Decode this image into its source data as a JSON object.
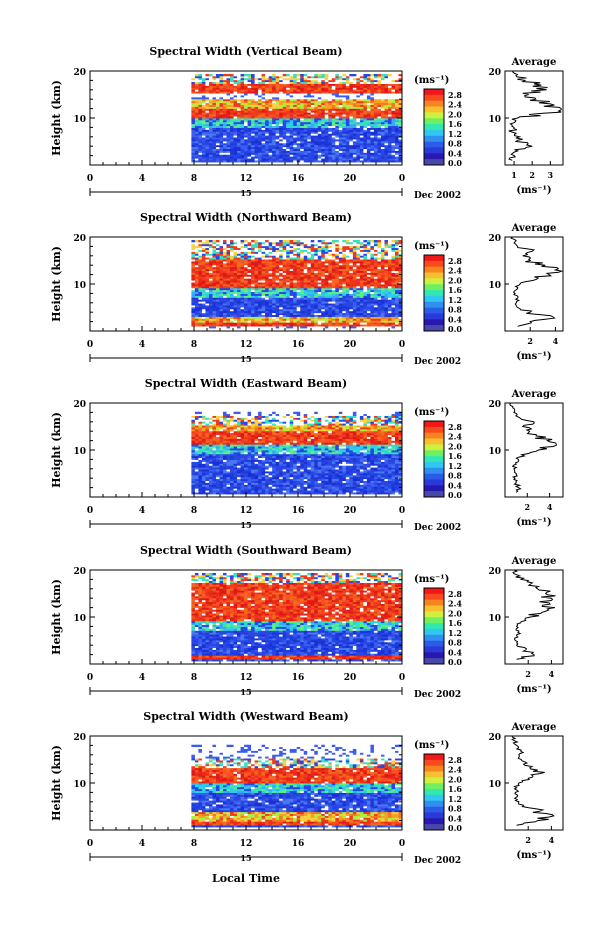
{
  "chart_data": [
    {
      "type": "heatmap",
      "title": "Spectral Width (Vertical Beam)",
      "ylabel": "Height (km)",
      "xlabel": "",
      "x_ticks": [
        "0",
        "4",
        "8",
        "12",
        "16",
        "20",
        "0"
      ],
      "y_ticks": [
        "20",
        "10"
      ],
      "xlim": [
        0,
        24
      ],
      "ylim": [
        0,
        20
      ],
      "date_label": "15",
      "month_label": "Dec 2002",
      "colorbar_unit": "(ms⁻¹)",
      "colorbar_ticks": [
        "2.8",
        "2.4",
        "2.0",
        "1.6",
        "1.2",
        "0.8",
        "0.4",
        "0.0"
      ],
      "data_start_hour": 7.8,
      "avg_title": "Average",
      "avg_ticks": [
        "1",
        "2",
        "3"
      ],
      "avg_xlim": [
        0.5,
        3.7
      ],
      "avg_unit": "(ms⁻¹)",
      "avg_profile": [
        [
          1,
          0.9
        ],
        [
          2,
          1.0
        ],
        [
          3,
          1.2
        ],
        [
          4,
          2.0
        ],
        [
          5,
          1.1
        ],
        [
          6,
          1.3
        ],
        [
          7,
          0.9
        ],
        [
          8,
          1.0
        ],
        [
          9,
          1.0
        ],
        [
          10,
          1.2
        ],
        [
          11,
          2.6
        ],
        [
          12,
          3.6
        ],
        [
          13,
          3.0
        ],
        [
          14,
          2.2
        ],
        [
          15,
          1.8
        ],
        [
          16,
          2.8
        ],
        [
          17,
          2.5
        ],
        [
          18,
          1.6
        ],
        [
          19,
          1.1
        ],
        [
          20,
          0.9
        ]
      ],
      "bands": [
        [
          0,
          3,
          "blue"
        ],
        [
          3,
          8,
          "blue"
        ],
        [
          8,
          10,
          "cyan"
        ],
        [
          10,
          12,
          "red"
        ],
        [
          12,
          14,
          "orange"
        ],
        [
          14,
          15,
          "white"
        ],
        [
          15,
          17,
          "red"
        ],
        [
          17,
          19,
          "mixed"
        ]
      ]
    },
    {
      "type": "heatmap",
      "title": "Spectral Width (Northward Beam)",
      "ylabel": "Height (km)",
      "xlabel": "",
      "x_ticks": [
        "0",
        "4",
        "8",
        "12",
        "16",
        "20",
        "0"
      ],
      "y_ticks": [
        "20",
        "10"
      ],
      "xlim": [
        0,
        24
      ],
      "ylim": [
        0,
        20
      ],
      "date_label": "15",
      "month_label": "Dec 2002",
      "colorbar_unit": "(ms⁻¹)",
      "colorbar_ticks": [
        "2.8",
        "2.4",
        "2.0",
        "1.6",
        "1.2",
        "0.8",
        "0.4",
        "0.0"
      ],
      "data_start_hour": 7.8,
      "avg_title": "Average",
      "avg_ticks": [
        "2",
        "4"
      ],
      "avg_xlim": [
        0,
        4.6
      ],
      "avg_unit": "(ms⁻¹)",
      "avg_profile": [
        [
          1,
          1.0
        ],
        [
          2,
          2.0
        ],
        [
          3,
          3.8
        ],
        [
          4,
          2.0
        ],
        [
          5,
          1.0
        ],
        [
          6,
          0.9
        ],
        [
          7,
          1.0
        ],
        [
          8,
          0.8
        ],
        [
          9,
          1.0
        ],
        [
          10,
          1.2
        ],
        [
          11,
          2.5
        ],
        [
          12,
          3.5
        ],
        [
          13,
          4.0
        ],
        [
          14,
          3.2
        ],
        [
          15,
          2.0
        ],
        [
          16,
          1.4
        ],
        [
          17,
          2.2
        ],
        [
          18,
          1.0
        ],
        [
          19,
          0.8
        ],
        [
          20,
          0.6
        ]
      ],
      "bands": [
        [
          0,
          1,
          "white"
        ],
        [
          1,
          2,
          "red"
        ],
        [
          2,
          3,
          "orange"
        ],
        [
          3,
          7,
          "blue"
        ],
        [
          7,
          9,
          "cyan"
        ],
        [
          9,
          15,
          "red"
        ],
        [
          15,
          17,
          "mixed"
        ],
        [
          17,
          19,
          "mixed"
        ]
      ]
    },
    {
      "type": "heatmap",
      "title": "Spectral Width (Eastward Beam)",
      "ylabel": "Height (km)",
      "xlabel": "",
      "x_ticks": [
        "0",
        "4",
        "8",
        "12",
        "16",
        "20",
        "0"
      ],
      "y_ticks": [
        "20",
        "10"
      ],
      "xlim": [
        0,
        24
      ],
      "ylim": [
        0,
        20
      ],
      "date_label": "15",
      "month_label": "Dec 2002",
      "colorbar_unit": "(ms⁻¹)",
      "colorbar_ticks": [
        "2.8",
        "2.4",
        "2.0",
        "1.6",
        "1.2",
        "0.8",
        "0.4",
        "0.0"
      ],
      "data_start_hour": 7.8,
      "avg_title": "Average",
      "avg_ticks": [
        "2",
        "4"
      ],
      "avg_xlim": [
        0,
        5.2
      ],
      "avg_unit": "(ms⁻¹)",
      "avg_profile": [
        [
          1,
          1.0
        ],
        [
          2,
          1.2
        ],
        [
          3,
          1.0
        ],
        [
          4,
          0.9
        ],
        [
          5,
          1.0
        ],
        [
          6,
          0.8
        ],
        [
          7,
          1.0
        ],
        [
          8,
          1.2
        ],
        [
          9,
          1.5
        ],
        [
          10,
          3.0
        ],
        [
          11,
          4.6
        ],
        [
          12,
          3.8
        ],
        [
          13,
          2.8
        ],
        [
          14,
          2.2
        ],
        [
          15,
          1.6
        ],
        [
          16,
          2.6
        ],
        [
          17,
          1.2
        ],
        [
          18,
          0.8
        ],
        [
          19,
          0.7
        ],
        [
          20,
          0.5
        ]
      ],
      "bands": [
        [
          0,
          1,
          "blue"
        ],
        [
          1,
          9,
          "blue"
        ],
        [
          9,
          11,
          "cyan"
        ],
        [
          11,
          14,
          "red"
        ],
        [
          14,
          15,
          "orange"
        ],
        [
          15,
          17,
          "mixed"
        ],
        [
          17,
          18,
          "white"
        ]
      ]
    },
    {
      "type": "heatmap",
      "title": "Spectral Width (Southward Beam)",
      "ylabel": "Height (km)",
      "xlabel": "",
      "x_ticks": [
        "0",
        "4",
        "8",
        "12",
        "16",
        "20",
        "0"
      ],
      "y_ticks": [
        "20",
        "10"
      ],
      "xlim": [
        0,
        24
      ],
      "ylim": [
        0,
        20
      ],
      "date_label": "15",
      "month_label": "Dec 2002",
      "colorbar_unit": "(ms⁻¹)",
      "colorbar_ticks": [
        "2.8",
        "2.4",
        "2.0",
        "1.6",
        "1.2",
        "0.8",
        "0.4",
        "0.0"
      ],
      "data_start_hour": 7.8,
      "avg_title": "Average",
      "avg_ticks": [
        "2",
        "4"
      ],
      "avg_xlim": [
        0,
        5.0
      ],
      "avg_unit": "(ms⁻¹)",
      "avg_profile": [
        [
          1,
          1.0
        ],
        [
          2,
          2.5
        ],
        [
          3,
          1.8
        ],
        [
          4,
          1.0
        ],
        [
          5,
          0.9
        ],
        [
          6,
          1.0
        ],
        [
          7,
          1.2
        ],
        [
          8,
          1.0
        ],
        [
          9,
          1.4
        ],
        [
          10,
          2.2
        ],
        [
          11,
          3.2
        ],
        [
          12,
          4.3
        ],
        [
          13,
          3.8
        ],
        [
          14,
          4.0
        ],
        [
          15,
          3.5
        ],
        [
          16,
          2.8
        ],
        [
          17,
          2.2
        ],
        [
          18,
          1.4
        ],
        [
          19,
          1.0
        ],
        [
          20,
          0.8
        ]
      ],
      "bands": [
        [
          0,
          1,
          "blue"
        ],
        [
          1,
          2,
          "red"
        ],
        [
          2,
          4,
          "blue"
        ],
        [
          4,
          7,
          "blue"
        ],
        [
          7,
          9,
          "cyan"
        ],
        [
          9,
          17,
          "red"
        ],
        [
          17,
          19,
          "mixed"
        ]
      ]
    },
    {
      "type": "heatmap",
      "title": "Spectral Width (Westward Beam)",
      "ylabel": "Height (km)",
      "xlabel": "Local Time",
      "x_ticks": [
        "0",
        "4",
        "8",
        "12",
        "16",
        "20",
        "0"
      ],
      "y_ticks": [
        "20",
        "10"
      ],
      "xlim": [
        0,
        24
      ],
      "ylim": [
        0,
        20
      ],
      "date_label": "15",
      "month_label": "Dec 2002",
      "colorbar_unit": "(ms⁻¹)",
      "colorbar_ticks": [
        "2.8",
        "2.4",
        "2.0",
        "1.6",
        "1.2",
        "0.8",
        "0.4",
        "0.0"
      ],
      "data_start_hour": 7.8,
      "avg_title": "Average",
      "avg_ticks": [
        "2",
        "4"
      ],
      "avg_xlim": [
        0,
        5.0
      ],
      "avg_unit": "(ms⁻¹)",
      "avg_profile": [
        [
          1,
          1.0
        ],
        [
          2,
          2.8
        ],
        [
          3,
          4.2
        ],
        [
          4,
          3.0
        ],
        [
          5,
          1.5
        ],
        [
          6,
          1.2
        ],
        [
          7,
          1.0
        ],
        [
          8,
          0.9
        ],
        [
          9,
          1.0
        ],
        [
          10,
          1.2
        ],
        [
          11,
          2.0
        ],
        [
          12,
          3.0
        ],
        [
          13,
          2.2
        ],
        [
          14,
          1.6
        ],
        [
          15,
          1.4
        ],
        [
          16,
          1.2
        ],
        [
          17,
          1.4
        ],
        [
          18,
          1.0
        ],
        [
          19,
          0.8
        ],
        [
          20,
          0.6
        ]
      ],
      "bands": [
        [
          0,
          1,
          "blue"
        ],
        [
          1,
          2,
          "red"
        ],
        [
          2,
          4,
          "orange"
        ],
        [
          4,
          8,
          "blue"
        ],
        [
          8,
          10,
          "cyan"
        ],
        [
          10,
          13,
          "red"
        ],
        [
          13,
          15,
          "mixed"
        ],
        [
          15,
          18,
          "white"
        ]
      ]
    }
  ]
}
